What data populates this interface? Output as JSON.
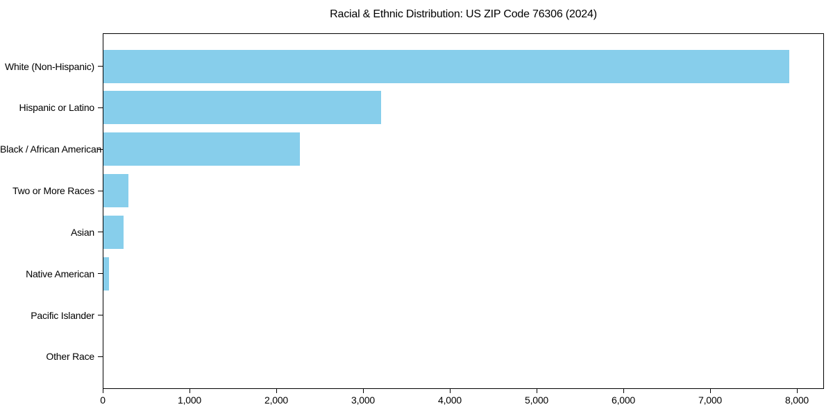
{
  "chart_data": {
    "type": "bar",
    "orientation": "horizontal",
    "title": "Racial & Ethnic Distribution: US ZIP Code 76306 (2024)",
    "categories": [
      "White (Non-Hispanic)",
      "Hispanic or Latino",
      "Black / African American",
      "Two or More Races",
      "Asian",
      "Native American",
      "Pacific Islander",
      "Other Race"
    ],
    "values": [
      7900,
      3200,
      2260,
      285,
      235,
      65,
      0,
      0
    ],
    "xlabel": "",
    "ylabel": "",
    "xlim": [
      0,
      8312
    ],
    "x_ticks": [
      0,
      1000,
      2000,
      3000,
      4000,
      5000,
      6000,
      7000,
      8000
    ],
    "x_tick_labels": [
      "0",
      "1,000",
      "2,000",
      "3,000",
      "4,000",
      "5,000",
      "6,000",
      "7,000",
      "8,000"
    ],
    "bar_color": "#87CEEB",
    "axis_color": "#000000",
    "background_color": "#FFFFFF",
    "grid": false,
    "legend": "none"
  }
}
